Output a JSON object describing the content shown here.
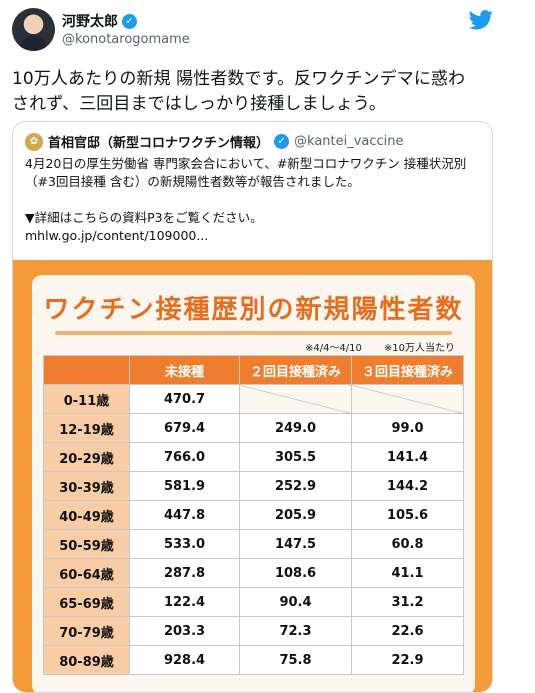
{
  "author": {
    "name": "河野太郎",
    "handle": "@konotarogomame"
  },
  "tweet_text": "10万人あたりの新規 陽性者数です。反ワクチンデマに惑わされず、三回目まではしっかり接種しましょう。",
  "quote": {
    "name": "首相官邸（新型コロナワクチン情報）",
    "handle": "@kantei_vaccine",
    "text": "4月20日の厚生労働省 専門家会合において、#新型コロナワクチン 接種状況別（#3回目接種 含む）の新規陽性者数等が報告されました。\n\n▼詳細はこちらの資料P3をご覧ください。\nmhlw.go.jp/content/109000..."
  },
  "image": {
    "title": "ワクチン接種歴別の新規陽性者数",
    "note_period": "※4/4〜4/10",
    "note_unit": "※10万人当たり"
  },
  "chart_data": {
    "type": "table",
    "title": "ワクチン接種歴別の新規陽性者数",
    "columns": [
      "",
      "未接種",
      "２回目接種済み",
      "３回目接種済み"
    ],
    "rows": [
      [
        "0-11歳",
        "470.7",
        "",
        ""
      ],
      [
        "12-19歳",
        "679.4",
        "249.0",
        "99.0"
      ],
      [
        "20-29歳",
        "766.0",
        "305.5",
        "141.4"
      ],
      [
        "30-39歳",
        "581.9",
        "252.9",
        "144.2"
      ],
      [
        "40-49歳",
        "447.8",
        "205.9",
        "105.6"
      ],
      [
        "50-59歳",
        "533.0",
        "147.5",
        "60.8"
      ],
      [
        "60-64歳",
        "287.8",
        "108.6",
        "41.1"
      ],
      [
        "65-69歳",
        "122.4",
        "90.4",
        "31.2"
      ],
      [
        "70-79歳",
        "203.3",
        "72.3",
        "22.6"
      ],
      [
        "80-89歳",
        "928.4",
        "75.8",
        "22.9"
      ]
    ]
  },
  "colors": {
    "accent": "#1d9bf0",
    "orange": "#ef7d2e",
    "age_cell": "#f8cca5"
  }
}
